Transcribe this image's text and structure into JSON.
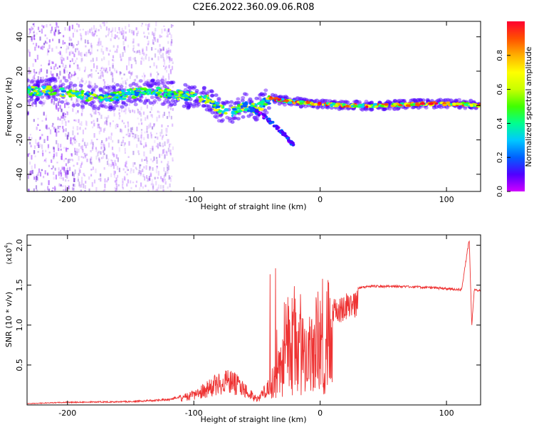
{
  "title": "C2E6.2022.360.09.06.R08",
  "colors": {
    "snr_line": "#ee3333",
    "spectrum_scatter": "#a040ff",
    "colorbar": [
      "#d000ff",
      "#5000ff",
      "#0060ff",
      "#00c8ff",
      "#00ff90",
      "#40ff00",
      "#c8ff00",
      "#ffff00",
      "#ffb000",
      "#ff5000",
      "#ff0030"
    ]
  },
  "chart_data": [
    {
      "type": "heatmap",
      "name_note": "top panel",
      "xlabel": "Height of straight line (km)",
      "ylabel": "Frequency (Hz)",
      "xlim": [
        -232,
        127
      ],
      "ylim": [
        -50,
        49
      ],
      "xticks": [
        -200,
        -100,
        0,
        100
      ],
      "xtick_labels": [
        "-200",
        "-100",
        "0",
        "100"
      ],
      "yticks": [
        -40,
        -20,
        0,
        20,
        40
      ],
      "ytick_labels": [
        "-40",
        "-20",
        "0",
        "20",
        "40"
      ],
      "colorbar": {
        "label": "Normalized spectral amplitude",
        "range": [
          0,
          1
        ],
        "ticks": [
          0.0,
          0.2,
          0.4,
          0.6,
          0.8
        ],
        "tick_labels": [
          "0.0",
          "0.2",
          "0.4",
          "0.6",
          "0.8"
        ]
      },
      "ridge": [
        {
          "x": -232,
          "y": 8
        },
        {
          "x": -210,
          "y": 9
        },
        {
          "x": -190,
          "y": 6
        },
        {
          "x": -170,
          "y": 4
        },
        {
          "x": -150,
          "y": 7
        },
        {
          "x": -130,
          "y": 8
        },
        {
          "x": -110,
          "y": 6
        },
        {
          "x": -90,
          "y": 4
        },
        {
          "x": -80,
          "y": -2
        },
        {
          "x": -70,
          "y": -4
        },
        {
          "x": -60,
          "y": 0
        },
        {
          "x": -50,
          "y": -2
        },
        {
          "x": -40,
          "y": 4
        },
        {
          "x": -30,
          "y": 3
        },
        {
          "x": -20,
          "y": 2
        },
        {
          "x": 0,
          "y": 1
        },
        {
          "x": 20,
          "y": 0
        },
        {
          "x": 50,
          "y": 0
        },
        {
          "x": 80,
          "y": 1
        },
        {
          "x": 110,
          "y": 1
        },
        {
          "x": 127,
          "y": 0
        }
      ],
      "branch": [
        {
          "x": -55,
          "y": -2
        },
        {
          "x": -45,
          "y": -6
        },
        {
          "x": -35,
          "y": -12
        },
        {
          "x": -27,
          "y": -18
        },
        {
          "x": -20,
          "y": -24
        }
      ]
    },
    {
      "type": "line",
      "name_note": "bottom panel",
      "xlabel": "Height of straight line (km)",
      "ylabel": "SNR (10 * v/v)",
      "y_multiplier": "(x10",
      "y_multiplier_exp": "4",
      "y_multiplier_close": ")",
      "xlim": [
        -232,
        127
      ],
      "ylim": [
        0,
        2.13
      ],
      "xticks": [
        -200,
        -100,
        0,
        100
      ],
      "xtick_labels": [
        "-200",
        "-100",
        "0",
        "100"
      ],
      "yticks": [
        0.5,
        1.0,
        1.5,
        2.0
      ],
      "ytick_labels": [
        "0.5",
        "1.0",
        "1.5",
        "2.0"
      ],
      "envelope": [
        {
          "x": -232,
          "y": 0.02
        },
        {
          "x": -200,
          "y": 0.04
        },
        {
          "x": -150,
          "y": 0.05
        },
        {
          "x": -120,
          "y": 0.08
        },
        {
          "x": -100,
          "y": 0.18
        },
        {
          "x": -90,
          "y": 0.3
        },
        {
          "x": -80,
          "y": 0.42
        },
        {
          "x": -70,
          "y": 0.45
        },
        {
          "x": -60,
          "y": 0.3
        },
        {
          "x": -50,
          "y": 0.1
        },
        {
          "x": -40,
          "y": 0.35
        },
        {
          "x": -30,
          "y": 0.9
        },
        {
          "x": -20,
          "y": 1.25
        },
        {
          "x": -10,
          "y": 1.15
        },
        {
          "x": 0,
          "y": 1.15
        },
        {
          "x": 10,
          "y": 1.32
        },
        {
          "x": 20,
          "y": 1.4
        },
        {
          "x": 30,
          "y": 1.48
        },
        {
          "x": 40,
          "y": 1.5
        },
        {
          "x": 60,
          "y": 1.5
        },
        {
          "x": 80,
          "y": 1.49
        },
        {
          "x": 100,
          "y": 1.47
        },
        {
          "x": 112,
          "y": 1.46
        },
        {
          "x": 118,
          "y": 2.1
        },
        {
          "x": 120,
          "y": 1.0
        },
        {
          "x": 122,
          "y": 1.46
        },
        {
          "x": 127,
          "y": 1.44
        }
      ]
    }
  ]
}
